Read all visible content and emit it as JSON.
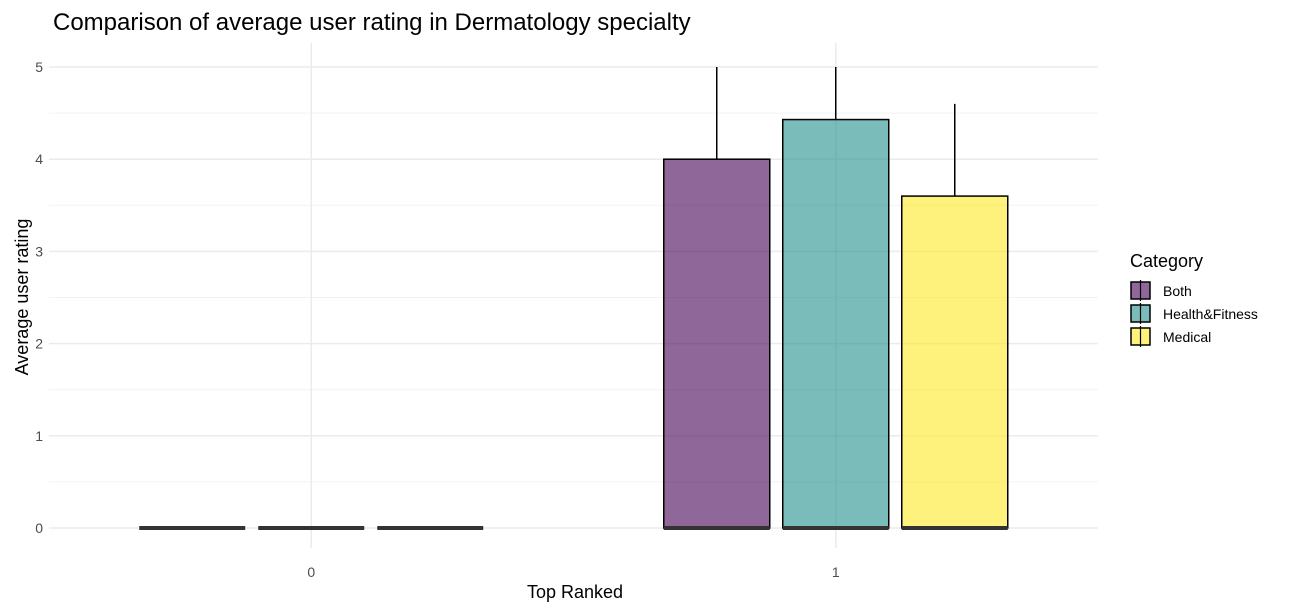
{
  "chart_data": {
    "type": "bar",
    "title": "Comparison of average user rating in Dermatology specialty",
    "xlabel": "Top Ranked",
    "ylabel": "Average user rating",
    "categories": [
      "0",
      "1"
    ],
    "ylim": [
      0,
      5
    ],
    "y_ticks": [
      "0",
      "1",
      "2",
      "3",
      "4",
      "5"
    ],
    "grid": true,
    "legend": {
      "title": "Category",
      "placement": "right"
    },
    "series": [
      {
        "name": "Both",
        "color": "#440154",
        "values": [
          0,
          4.0
        ],
        "error_upper": [
          0,
          5.0
        ]
      },
      {
        "name": "Health&Fitness",
        "color": "#21908C",
        "values": [
          0,
          4.43
        ],
        "error_upper": [
          0,
          5.0
        ]
      },
      {
        "name": "Medical",
        "color": "#FDE725",
        "values": [
          0,
          3.6
        ],
        "error_upper": [
          0,
          4.6
        ]
      }
    ]
  }
}
